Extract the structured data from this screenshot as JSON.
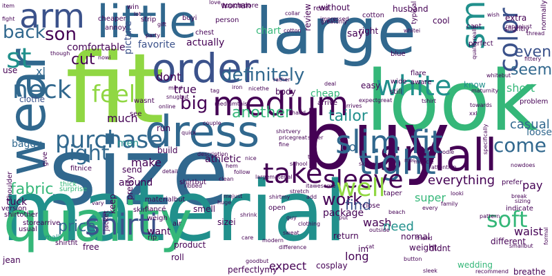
{
  "palette": {
    "purple": "#440154",
    "indigo": "#3b528b",
    "blue": "#31688e",
    "teal": "#21908c",
    "green": "#35b779",
    "lime": "#90d743",
    "yellow": "#fde725",
    "background": "#ffffff"
  },
  "words": [
    {
      "text": "fit",
      "color": "lime"
    },
    {
      "text": "size",
      "color": "blue"
    },
    {
      "text": "material",
      "color": "teal"
    },
    {
      "text": "look",
      "color": "green"
    },
    {
      "text": "buy",
      "color": "purple"
    },
    {
      "text": "large",
      "color": "blue"
    },
    {
      "text": "little",
      "color": "blue"
    },
    {
      "text": "quality",
      "color": "green"
    },
    {
      "text": "wear",
      "color": "blue"
    },
    {
      "text": "order",
      "color": "indigo"
    },
    {
      "text": "small",
      "color": "purple"
    },
    {
      "text": "dress",
      "color": "blue"
    },
    {
      "text": "arm",
      "color": "indigo"
    },
    {
      "text": "medium",
      "color": "purple"
    },
    {
      "text": "slim fit",
      "color": "blue"
    },
    {
      "text": "white",
      "color": "teal"
    },
    {
      "text": "neck",
      "color": "blue"
    },
    {
      "text": "purchase",
      "color": "blue"
    },
    {
      "text": "tight",
      "color": "blue"
    },
    {
      "text": "take",
      "color": "purple"
    },
    {
      "text": "shirti",
      "color": "indigo"
    },
    {
      "text": "sleeve",
      "color": "purple"
    },
    {
      "text": "well",
      "color": "lime"
    },
    {
      "text": "feel",
      "color": "lime"
    },
    {
      "text": "light",
      "color": "blue"
    },
    {
      "text": "soft",
      "color": "green"
    },
    {
      "text": "color",
      "color": "indigo"
    },
    {
      "text": "work",
      "color": "purple"
    },
    {
      "text": "come",
      "color": "blue"
    },
    {
      "text": "definitely",
      "color": "blue"
    },
    {
      "text": "fabric",
      "color": "green"
    },
    {
      "text": "price",
      "color": "blue"
    },
    {
      "text": "back",
      "color": "blue"
    },
    {
      "text": "son",
      "color": "purple"
    },
    {
      "text": "big",
      "color": "purple"
    },
    {
      "text": "seem",
      "color": "blue"
    },
    {
      "text": "even",
      "color": "indigo"
    },
    {
      "text": "another",
      "color": "green"
    },
    {
      "text": "tailor",
      "color": "teal"
    },
    {
      "text": "st",
      "color": "teal"
    },
    {
      "text": "sm",
      "color": "teal"
    },
    {
      "text": "comfortable",
      "color": "purple"
    },
    {
      "text": "cut",
      "color": "purple"
    },
    {
      "text": "favorite",
      "color": "indigo"
    },
    {
      "text": "actually",
      "color": "purple"
    },
    {
      "text": "dont",
      "color": "purple"
    },
    {
      "text": "true",
      "color": "purple"
    },
    {
      "text": "much",
      "color": "purple"
    },
    {
      "text": "make",
      "color": "purple"
    },
    {
      "text": "go",
      "color": "blue"
    },
    {
      "text": "everything",
      "color": "purple"
    },
    {
      "text": "casual",
      "color": "blue"
    },
    {
      "text": "wash",
      "color": "purple"
    },
    {
      "text": "find",
      "color": "indigo"
    },
    {
      "text": "need",
      "color": "teal"
    },
    {
      "text": "long",
      "color": "purple"
    },
    {
      "text": "expect",
      "color": "purple"
    },
    {
      "text": "waist",
      "color": "purple"
    },
    {
      "text": "short",
      "color": "green"
    },
    {
      "text": "super",
      "color": "green"
    },
    {
      "text": "pay",
      "color": "purple"
    },
    {
      "text": "loose",
      "color": "blue"
    },
    {
      "text": "cheap",
      "color": "green"
    },
    {
      "text": "chart",
      "color": "green"
    },
    {
      "text": "say",
      "color": "purple"
    },
    {
      "text": "xl",
      "color": "blue"
    },
    {
      "text": "clothe",
      "color": "indigo"
    },
    {
      "text": "baggy",
      "color": "blue"
    },
    {
      "text": "tuck",
      "color": "purple"
    },
    {
      "text": "jean",
      "color": "purple"
    },
    {
      "text": "want",
      "color": "purple"
    },
    {
      "text": "around",
      "color": "purple"
    },
    {
      "text": "men",
      "color": "teal"
    },
    {
      "text": "athletic",
      "color": "purple"
    },
    {
      "text": "package",
      "color": "purple"
    },
    {
      "text": "picture",
      "color": "indigo"
    },
    {
      "text": "body",
      "color": "purple"
    },
    {
      "text": "right",
      "color": "purple"
    },
    {
      "text": "husband",
      "color": "purple"
    },
    {
      "text": "without",
      "color": "purple"
    },
    {
      "text": "extra",
      "color": "purple"
    },
    {
      "text": "cool",
      "color": "purple"
    },
    {
      "text": "review",
      "color": "purple"
    },
    {
      "text": "woman",
      "color": "purple"
    },
    {
      "text": "know",
      "color": "teal"
    },
    {
      "text": "build",
      "color": "purple"
    },
    {
      "text": "easy",
      "color": "purple"
    },
    {
      "text": "arrive",
      "color": "purple"
    },
    {
      "text": "run",
      "color": "purple"
    },
    {
      "text": "product",
      "color": "purple"
    },
    {
      "text": "pretty",
      "color": "purple"
    },
    {
      "text": "send",
      "color": "purple"
    },
    {
      "text": "keep",
      "color": "purple"
    },
    {
      "text": "weight",
      "color": "purple"
    },
    {
      "text": "normal",
      "color": "purple"
    },
    {
      "text": "different",
      "color": "purple"
    },
    {
      "text": "wedding",
      "color": "green"
    },
    {
      "text": "breathe",
      "color": "purple"
    },
    {
      "text": "cosplay",
      "color": "purple"
    },
    {
      "text": "perfectlymy",
      "color": "purple"
    },
    {
      "text": "shirtfit",
      "color": "purple"
    },
    {
      "text": "shirtbut",
      "color": "purple"
    },
    {
      "text": "materialbut",
      "color": "purple"
    },
    {
      "text": "free",
      "color": "purple"
    },
    {
      "text": "smell",
      "color": "purple"
    },
    {
      "text": "weigh",
      "color": "purple"
    },
    {
      "text": "open",
      "color": "purple"
    },
    {
      "text": "close",
      "color": "purple"
    },
    {
      "text": "sizei",
      "color": "purple"
    },
    {
      "text": "prefer",
      "color": "purple"
    },
    {
      "text": "return",
      "color": "purple"
    },
    {
      "text": "im",
      "color": "purple"
    },
    {
      "text": "didnt",
      "color": "purple"
    },
    {
      "text": "fitnice",
      "color": "purple"
    },
    {
      "text": "smalli",
      "color": "teal"
    },
    {
      "text": "cant",
      "color": "purple"
    },
    {
      "text": "problem",
      "color": "purple"
    },
    {
      "text": "version",
      "color": "purple"
    },
    {
      "text": "wasnt",
      "color": "purple"
    },
    {
      "text": "skin",
      "color": "purple"
    },
    {
      "text": "use",
      "color": "purple"
    },
    {
      "text": "shoulder",
      "color": "purple"
    },
    {
      "text": "thick",
      "color": "green"
    },
    {
      "text": "surprise",
      "color": "green"
    },
    {
      "text": "shirtother",
      "color": "purple"
    },
    {
      "text": "storearrive",
      "color": "purple"
    },
    {
      "text": "usual",
      "color": "purple"
    },
    {
      "text": "jacket",
      "color": "purple"
    },
    {
      "text": "roll",
      "color": "purple"
    },
    {
      "text": "rip",
      "color": "purple"
    },
    {
      "text": "air",
      "color": "purple"
    },
    {
      "text": "item",
      "color": "purple"
    },
    {
      "text": "fight",
      "color": "purple"
    },
    {
      "text": "formal",
      "color": "purple"
    },
    {
      "text": "normally",
      "color": "purple"
    },
    {
      "text": "love",
      "color": "purple"
    },
    {
      "text": "lot",
      "color": "purple"
    },
    {
      "text": "win",
      "color": "purple"
    },
    {
      "text": "buyi",
      "color": "purple"
    },
    {
      "text": "touch",
      "color": "purple"
    },
    {
      "text": "adore",
      "color": "purple"
    },
    {
      "text": "read",
      "color": "purple"
    },
    {
      "text": "cotton",
      "color": "purple"
    },
    {
      "text": "strip",
      "color": "purple"
    },
    {
      "text": "cheaper",
      "color": "purple"
    },
    {
      "text": "annoy",
      "color": "purple"
    },
    {
      "text": "person",
      "color": "purple"
    },
    {
      "text": "impressed",
      "color": "purple"
    },
    {
      "text": "typical",
      "color": "purple"
    },
    {
      "text": "perfect",
      "color": "purple"
    },
    {
      "text": "slightly",
      "color": "purple"
    },
    {
      "text": "thread",
      "color": "purple"
    },
    {
      "text": "fittery",
      "color": "purple"
    },
    {
      "text": "blue",
      "color": "purple"
    },
    {
      "text": "flare",
      "color": "purple"
    },
    {
      "text": "aware",
      "color": "purple"
    },
    {
      "text": "still",
      "color": "purple"
    },
    {
      "text": "wide",
      "color": "purple"
    },
    {
      "text": "mediumthis",
      "color": "purple"
    },
    {
      "text": "online",
      "color": "purple"
    },
    {
      "text": "see",
      "color": "purple"
    },
    {
      "text": "couple",
      "color": "purple"
    },
    {
      "text": "quick",
      "color": "purple"
    },
    {
      "text": "shirtvery",
      "color": "purple"
    },
    {
      "text": "pricegreat",
      "color": "purple"
    },
    {
      "text": "largematerial",
      "color": "purple"
    },
    {
      "text": "shirtmy",
      "color": "purple"
    },
    {
      "text": "mejust",
      "color": "purple"
    },
    {
      "text": "huge",
      "color": "purple"
    },
    {
      "text": "add",
      "color": "purple"
    },
    {
      "text": "skinny",
      "color": "purple"
    },
    {
      "text": "indicate",
      "color": "purple"
    },
    {
      "text": "vary",
      "color": "purple"
    },
    {
      "text": "give",
      "color": "purple"
    },
    {
      "text": "guy",
      "color": "purple"
    },
    {
      "text": "care",
      "color": "purple"
    },
    {
      "text": "put",
      "color": "purple"
    },
    {
      "text": "taper",
      "color": "purple"
    },
    {
      "text": "fiancé",
      "color": "purple"
    },
    {
      "text": "break",
      "color": "purple"
    },
    {
      "text": "pattern",
      "color": "purple"
    },
    {
      "text": "sizing",
      "color": "purple"
    },
    {
      "text": "every",
      "color": "purple"
    },
    {
      "text": "family",
      "color": "purple"
    },
    {
      "text": "though",
      "color": "purple"
    },
    {
      "text": "iron",
      "color": "purple"
    },
    {
      "text": "nicethe",
      "color": "purple"
    },
    {
      "text": "rather",
      "color": "purple"
    },
    {
      "text": "mind",
      "color": "purple"
    },
    {
      "text": "snugbut",
      "color": "purple"
    },
    {
      "text": "nowi",
      "color": "purple"
    },
    {
      "text": "tag",
      "color": "purple"
    },
    {
      "text": "school",
      "color": "purple"
    },
    {
      "text": "follow",
      "color": "purple"
    },
    {
      "text": "clean",
      "color": "purple"
    },
    {
      "text": "ribbed",
      "color": "purple"
    },
    {
      "text": "detail",
      "color": "purple"
    },
    {
      "text": "maturnity",
      "color": "purple"
    },
    {
      "text": "whitebut",
      "color": "purple"
    },
    {
      "text": "mei",
      "color": "purple"
    },
    {
      "text": "bodie",
      "color": "purple"
    },
    {
      "text": "towards",
      "color": "purple"
    },
    {
      "text": "outside",
      "color": "purple"
    },
    {
      "text": "friend",
      "color": "purple"
    },
    {
      "text": "nowdoes",
      "color": "purple"
    },
    {
      "text": "cotton",
      "color": "purple"
    },
    {
      "text": "whitei",
      "color": "purple"
    },
    {
      "text": "chest",
      "color": "purple"
    },
    {
      "text": "party",
      "color": "purple"
    },
    {
      "text": "gift",
      "color": "purple"
    },
    {
      "text": "cat",
      "color": "purple"
    },
    {
      "text": "goodbut",
      "color": "purple"
    },
    {
      "text": "itawesome",
      "color": "purple"
    },
    {
      "text": "expectgreat",
      "color": "purple"
    },
    {
      "text": "qualityreally",
      "color": "purple"
    },
    {
      "text": "rangejust",
      "color": "purple"
    },
    {
      "text": "wish",
      "color": "purple"
    },
    {
      "text": "collar",
      "color": "purple"
    },
    {
      "text": "greatonly",
      "color": "purple"
    },
    {
      "text": "description",
      "color": "purple"
    },
    {
      "text": "specifically",
      "color": "purple"
    },
    {
      "text": "muscle",
      "color": "purple"
    },
    {
      "text": "attention",
      "color": "purple"
    },
    {
      "text": "recommend",
      "color": "purple"
    },
    {
      "text": "smallbut",
      "color": "purple"
    },
    {
      "text": "beach",
      "color": "purple"
    },
    {
      "text": "clothing",
      "color": "purple"
    },
    {
      "text": "sweat",
      "color": "purple"
    },
    {
      "text": "modern",
      "color": "purple"
    },
    {
      "text": "difference",
      "color": "purple"
    },
    {
      "text": "looki",
      "color": "purple"
    },
    {
      "text": "xxl",
      "color": "purple"
    },
    {
      "text": "tshirt",
      "color": "purple"
    },
    {
      "text": "arrives",
      "color": "purple"
    },
    {
      "text": "deal",
      "color": "purple"
    },
    {
      "text": "hand",
      "color": "purple"
    },
    {
      "text": "tall",
      "color": "purple"
    },
    {
      "text": "nice",
      "color": "purple"
    },
    {
      "text": "hem",
      "color": "purple"
    },
    {
      "text": "fine",
      "color": "purple"
    },
    {
      "text": "sheer",
      "color": "purple"
    },
    {
      "text": "stretch",
      "color": "purple"
    },
    {
      "text": "shrink",
      "color": "purple"
    },
    {
      "text": "button",
      "color": "purple"
    },
    {
      "text": "sleek",
      "color": "purple"
    }
  ]
}
